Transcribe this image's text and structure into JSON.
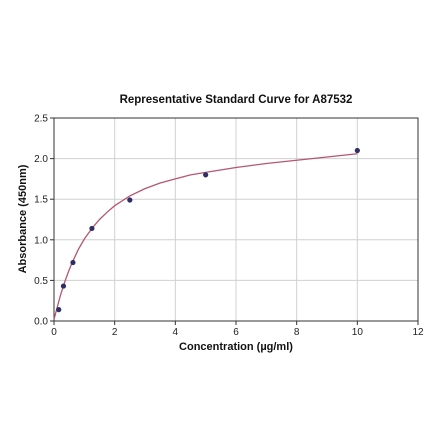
{
  "chart_data": {
    "type": "scatter",
    "title": "Representative Standard Curve for A87532",
    "xlabel": "Concentration (µg/ml)",
    "ylabel": "Absorbance (450nm)",
    "xlim": [
      0,
      12
    ],
    "ylim": [
      0,
      2.5
    ],
    "xticks": [
      "0",
      "2",
      "4",
      "6",
      "8",
      "10",
      "12"
    ],
    "yticks": [
      "0.0",
      "0.5",
      "1.0",
      "1.5",
      "2.0",
      "2.5"
    ],
    "grid": true,
    "series": [
      {
        "type": "scatter",
        "x": [
          0.156,
          0.312,
          0.625,
          1.25,
          2.5,
          5,
          10
        ],
        "y": [
          0.14,
          0.43,
          0.72,
          1.14,
          1.49,
          1.8,
          2.1
        ]
      }
    ],
    "fit_curve": {
      "type": "line",
      "x": [
        0,
        0.1,
        0.2,
        0.3,
        0.4,
        0.5,
        0.6,
        0.8,
        1.0,
        1.25,
        1.5,
        1.75,
        2.0,
        2.5,
        3.0,
        3.5,
        4.0,
        4.5,
        5.0,
        6.0,
        7.0,
        8.0,
        9.0,
        10.0
      ],
      "y": [
        0.02,
        0.16,
        0.3,
        0.42,
        0.53,
        0.63,
        0.72,
        0.88,
        1.01,
        1.14,
        1.25,
        1.34,
        1.42,
        1.54,
        1.63,
        1.7,
        1.75,
        1.8,
        1.83,
        1.89,
        1.94,
        1.98,
        2.02,
        2.06
      ]
    },
    "colors": {
      "points": "#2d2f66",
      "curve": "#b5566f",
      "grid": "#d0d0d0",
      "axis": "#333333"
    }
  }
}
